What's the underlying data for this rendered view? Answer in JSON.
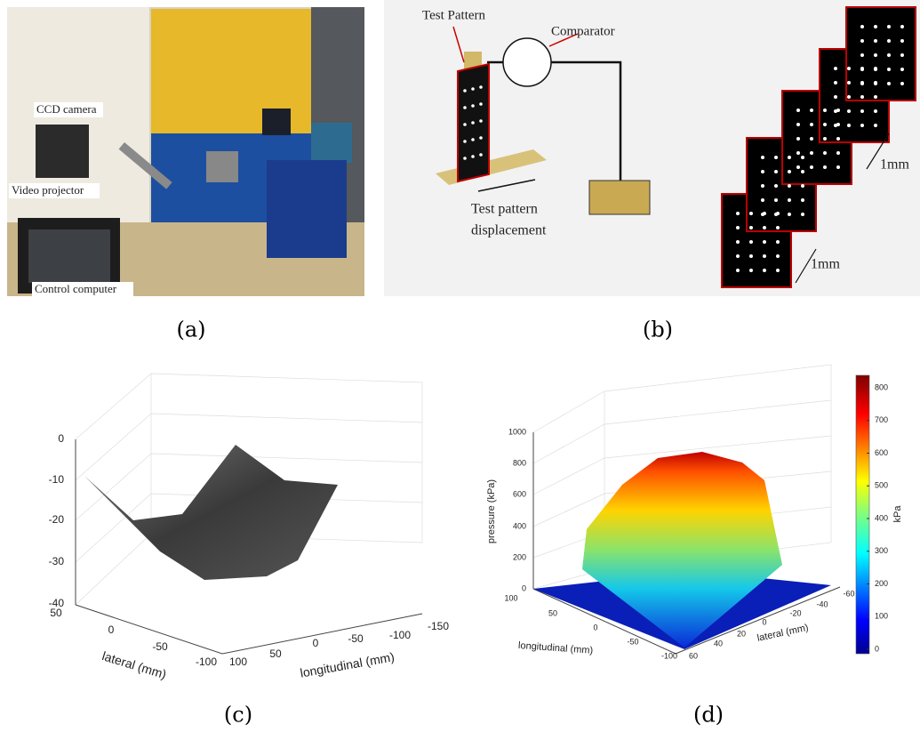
{
  "panel_a": {
    "caption": "(a)",
    "labels": [
      "CCD camera",
      "Video projector",
      "Control computer"
    ]
  },
  "panel_b": {
    "caption": "(b)",
    "test_pattern": "Test Pattern",
    "comparator": "Comparator",
    "displacement_label": [
      "Test pattern",
      "displacement"
    ],
    "step_labels": [
      "1mm",
      "1mm"
    ]
  },
  "panel_c": {
    "caption": "(c)",
    "z_ticks": [
      "0",
      "-10",
      "-20",
      "-30",
      "-40"
    ],
    "lateral_ticks": [
      "50",
      "0",
      "-50",
      "-100"
    ],
    "longitudinal_ticks": [
      "100",
      "50",
      "0",
      "-50",
      "-100",
      "-150"
    ],
    "lateral_label": "lateral (mm)",
    "longitudinal_label": "longitudinal (mm)"
  },
  "panel_d": {
    "caption": "(d)",
    "z_label": "pressure (kPa)",
    "z_ticks": [
      "1000",
      "800",
      "600",
      "400",
      "200",
      "0"
    ],
    "longitudinal_ticks": [
      "100",
      "50",
      "0",
      "-50",
      "-100"
    ],
    "lateral_ticks": [
      "60",
      "40",
      "20",
      "0",
      "-20",
      "-40",
      "-60"
    ],
    "longitudinal_label": "longitudinal (mm)",
    "lateral_label": "lateral (mm)",
    "colorbar_label": "kPa",
    "colorbar_ticks": [
      "800",
      "700",
      "600",
      "500",
      "400",
      "300",
      "200",
      "100",
      "0"
    ]
  }
}
